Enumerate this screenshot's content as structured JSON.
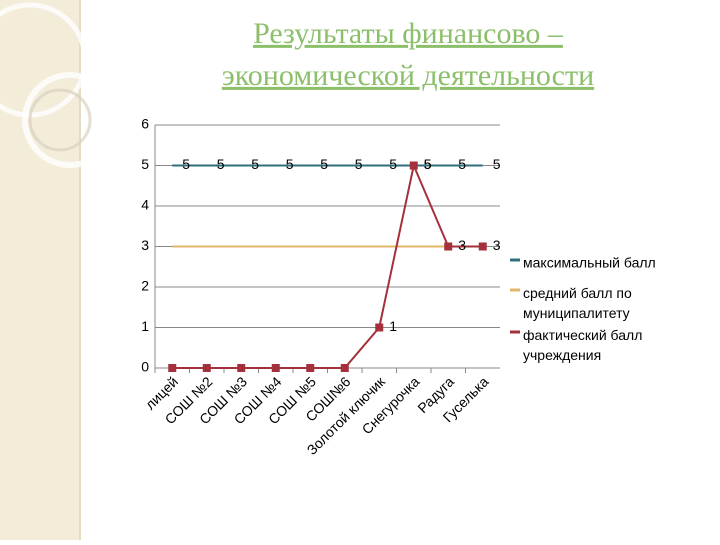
{
  "header": {
    "title_lines": [
      "Результаты финансово –",
      "экономической деятельности"
    ]
  },
  "chart_data": {
    "type": "line",
    "categories": [
      "лицей",
      "СОШ №2",
      "СОШ №3",
      "СОШ №4",
      "СОШ №5",
      "СОШ№6",
      "Золотой ключик",
      "Снегурочка",
      "Радуга",
      "Гуселька"
    ],
    "series": [
      {
        "name": "максимальный балл",
        "color": "#2f6f7e",
        "values": [
          5,
          5,
          5,
          5,
          5,
          5,
          5,
          5,
          5,
          5
        ],
        "labels": true,
        "markers": false
      },
      {
        "name": "средний  балл по муниципалитету",
        "color": "#e2b76a",
        "values": [
          3,
          3,
          3,
          3,
          3,
          3,
          3,
          3,
          3,
          3
        ],
        "labels": false,
        "markers": false
      },
      {
        "name": "фактический балл учреждения",
        "color": "#a3303a",
        "values": [
          0,
          0,
          0,
          0,
          0,
          0,
          1,
          5,
          3,
          3
        ],
        "labels": true,
        "markers": true
      }
    ],
    "ylim": [
      0,
      6
    ],
    "yticks": [
      0,
      1,
      2,
      3,
      4,
      5,
      6
    ],
    "grid": true
  }
}
